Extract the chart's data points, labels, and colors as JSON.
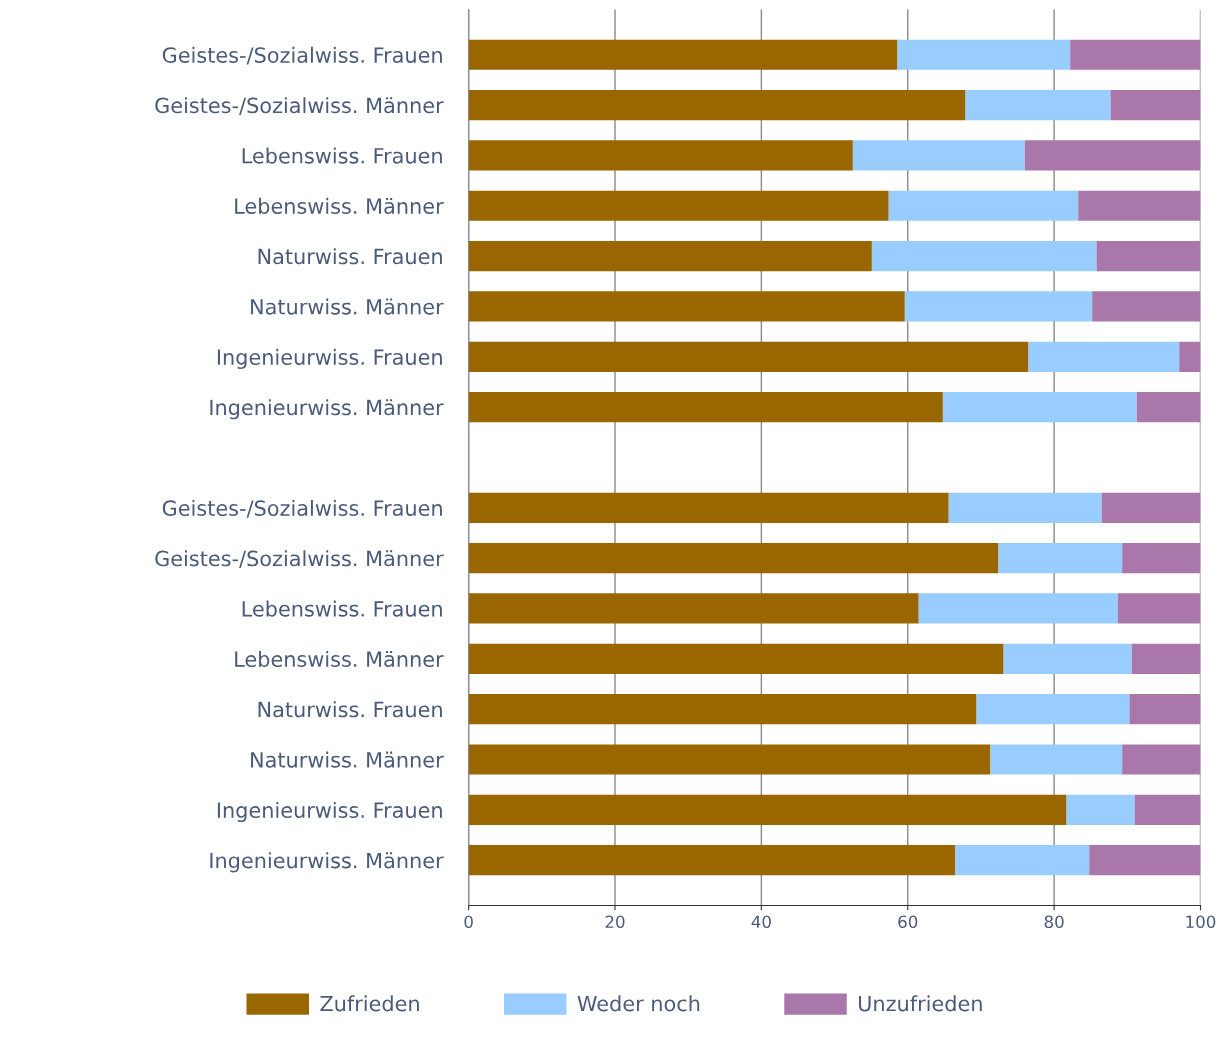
{
  "chart_data": {
    "type": "bar",
    "orientation": "horizontal",
    "stacked": true,
    "categories": [
      "Geistes-/Sozialwiss. Frauen",
      "Geistes-/Sozialwiss. Männer",
      "Lebenswiss. Frauen",
      "Lebenswiss. Männer",
      "Naturwiss. Frauen",
      "Naturwiss. Männer",
      "Ingenieurwiss. Frauen",
      "Ingenieurwiss. Männer",
      null,
      "Geistes-/Sozialwiss. Frauen",
      "Geistes-/Sozialwiss. Männer",
      "Lebenswiss. Frauen",
      "Lebenswiss. Männer",
      "Naturwiss. Frauen",
      "Naturwiss. Männer",
      "Ingenieurwiss. Frauen",
      "Ingenieurwiss. Männer"
    ],
    "series": [
      {
        "name": "Zufrieden",
        "color": "#996600",
        "values": [
          58.6,
          67.9,
          52.5,
          57.4,
          55.1,
          59.6,
          76.5,
          64.8,
          null,
          65.6,
          72.4,
          61.5,
          73.1,
          69.4,
          71.3,
          81.7,
          66.5
        ]
      },
      {
        "name": "Weder noch",
        "color": "#99ccff",
        "values": [
          23.6,
          19.8,
          23.5,
          25.9,
          30.7,
          25.6,
          20.6,
          26.5,
          null,
          20.9,
          16.9,
          27.2,
          17.5,
          20.9,
          18.0,
          9.3,
          18.3
        ]
      },
      {
        "name": "Unzufrieden",
        "color": "#aa77aa",
        "values": [
          17.8,
          12.3,
          24.0,
          16.7,
          14.2,
          14.8,
          2.9,
          8.7,
          null,
          13.5,
          10.7,
          11.3,
          9.4,
          9.7,
          10.7,
          9.0,
          15.2
        ]
      }
    ],
    "xlim": [
      0,
      100
    ],
    "xticks": [
      0,
      20,
      40,
      60,
      80,
      100
    ],
    "grid": "x",
    "legend": "bottom"
  }
}
